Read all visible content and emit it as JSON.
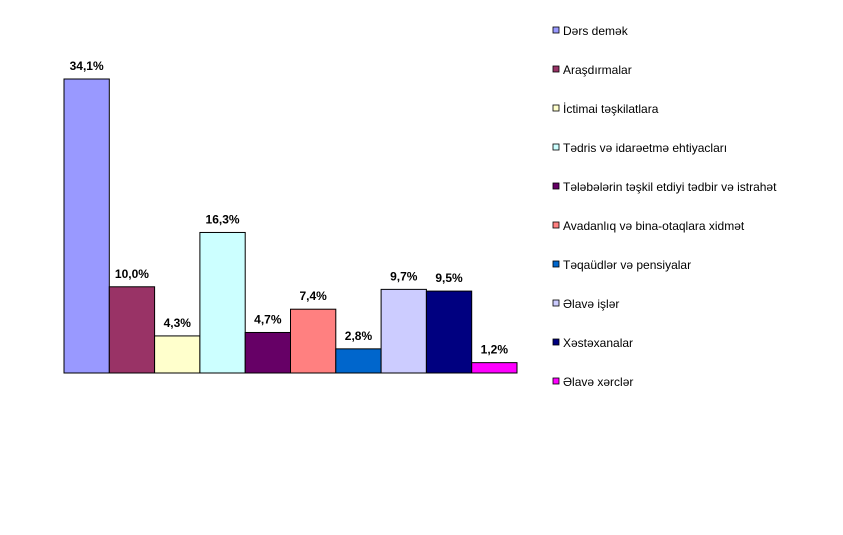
{
  "chart_data": {
    "type": "bar",
    "title": "",
    "xlabel": "",
    "ylabel": "",
    "ylim": [
      0,
      34.1
    ],
    "grid": false,
    "legend_position": "right",
    "series": [
      {
        "name": "Dərs demək",
        "value": 34.1,
        "label": "34,1%",
        "color": "#9999ff"
      },
      {
        "name": "Araşdırmalar",
        "value": 10.0,
        "label": "10,0%",
        "color": "#993366"
      },
      {
        "name": "İctimai təşkilatlara",
        "value": 4.3,
        "label": "4,3%",
        "color": "#ffffcc"
      },
      {
        "name": "Tədris və idarəetmə ehtiyacları",
        "value": 16.3,
        "label": "16,3%",
        "color": "#ccffff"
      },
      {
        "name": "Tələbələrin təşkil etdiyi tədbir və istrahət",
        "value": 4.7,
        "label": "4,7%",
        "color": "#660066"
      },
      {
        "name": "Avadanlıq və bina-otaqlara xidmət",
        "value": 7.4,
        "label": "7,4%",
        "color": "#ff8080"
      },
      {
        "name": "Təqaüdlər və pensiyalar",
        "value": 2.8,
        "label": "2,8%",
        "color": "#0066cc"
      },
      {
        "name": "Əlavə işlər",
        "value": 9.7,
        "label": "9,7%",
        "color": "#ccccff"
      },
      {
        "name": "Xəstəxanalar",
        "value": 9.5,
        "label": "9,5%",
        "color": "#000080"
      },
      {
        "name": "Əlavə xərclər",
        "value": 1.2,
        "label": "1,2%",
        "color": "#ff00ff"
      }
    ]
  }
}
